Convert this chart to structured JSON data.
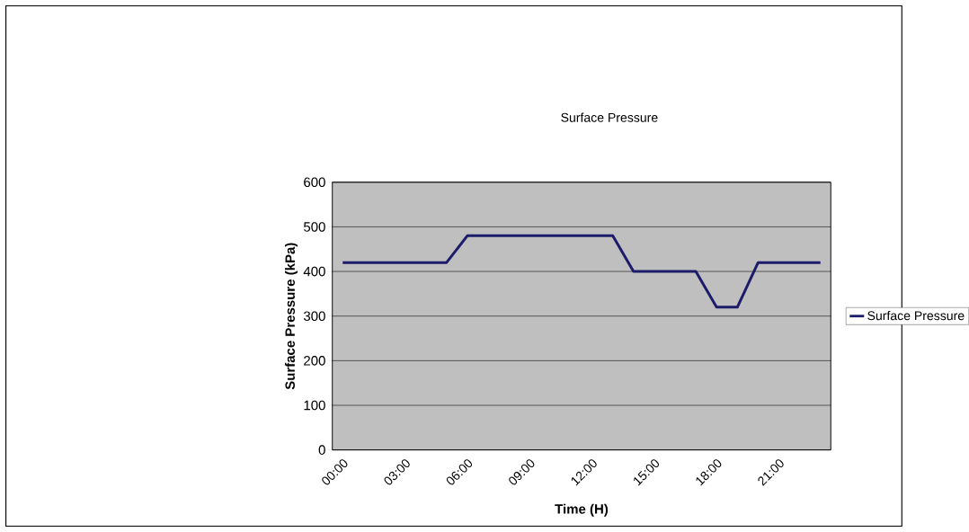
{
  "chart_data": {
    "type": "line",
    "title": "Surface Pressure",
    "xlabel": "Time (H)",
    "ylabel": "Surface Pressure (kPa)",
    "categories": [
      "00:00",
      null,
      null,
      "03:00",
      null,
      null,
      "06:00",
      null,
      null,
      "09:00",
      null,
      null,
      "12:00",
      null,
      null,
      "15:00",
      null,
      null,
      "18:00",
      null,
      null,
      "21:00",
      null,
      null
    ],
    "series": [
      {
        "name": "Surface Pressure",
        "color": "#1c1c6b",
        "values": [
          420,
          420,
          420,
          420,
          420,
          420,
          480,
          480,
          480,
          480,
          480,
          480,
          480,
          480,
          400,
          400,
          400,
          400,
          320,
          320,
          420,
          420,
          420,
          420
        ]
      }
    ],
    "ylim": [
      0,
      600
    ],
    "yticks": [
      0,
      100,
      200,
      300,
      400,
      500,
      600
    ],
    "grid": "y",
    "legend": "right",
    "marker": "none",
    "line_style": "solid"
  }
}
